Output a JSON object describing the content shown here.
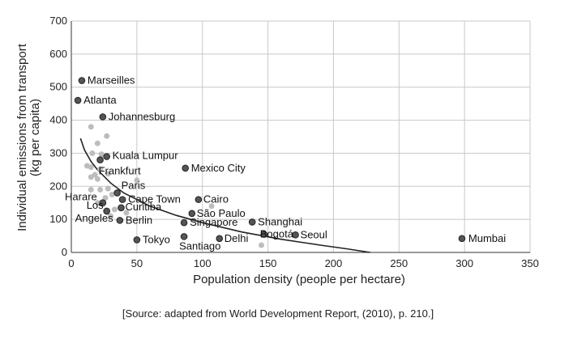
{
  "chart_data": {
    "type": "scatter",
    "xlabel": "Population density (people per hectare)",
    "ylabel_line1": "Individual emissions from transport",
    "ylabel_line2": "(kg per capita)",
    "xlim": [
      0,
      350
    ],
    "ylim": [
      0,
      700
    ],
    "x_ticks": [
      0,
      50,
      100,
      150,
      200,
      250,
      300,
      350
    ],
    "y_ticks": [
      0,
      100,
      200,
      300,
      400,
      500,
      600,
      700
    ],
    "grid": true,
    "source": "[Source: adapted from World Development Report, (2010), p. 210.]",
    "labeled_points": [
      {
        "name": "Marseilles",
        "x": 8,
        "y": 520
      },
      {
        "name": "Atlanta",
        "x": 5,
        "y": 460
      },
      {
        "name": "Johannesburg",
        "x": 24,
        "y": 410
      },
      {
        "name": "Kuala Lumpur",
        "x": 27,
        "y": 290
      },
      {
        "name": "Frankfurt",
        "x": 22,
        "y": 280
      },
      {
        "name": "Mexico City",
        "x": 87,
        "y": 255
      },
      {
        "name": "Paris",
        "x": 35,
        "y": 180
      },
      {
        "name": "Harare",
        "x": 24,
        "y": 150
      },
      {
        "name": "Cape Town",
        "x": 39,
        "y": 160
      },
      {
        "name": "Cairo",
        "x": 97,
        "y": 160
      },
      {
        "name": "Curitiba",
        "x": 38,
        "y": 135
      },
      {
        "name": "Los Angeles",
        "x": 27,
        "y": 125
      },
      {
        "name": "São Paulo",
        "x": 92,
        "y": 118
      },
      {
        "name": "Berlin",
        "x": 37,
        "y": 97
      },
      {
        "name": "Singapore",
        "x": 86,
        "y": 90
      },
      {
        "name": "Shanghai",
        "x": 138,
        "y": 92
      },
      {
        "name": "Bogotá",
        "x": 147,
        "y": 55
      },
      {
        "name": "Seoul",
        "x": 171,
        "y": 53
      },
      {
        "name": "Mumbai",
        "x": 298,
        "y": 42
      },
      {
        "name": "Tokyo",
        "x": 50,
        "y": 38
      },
      {
        "name": "Santiago",
        "x": 86,
        "y": 48
      },
      {
        "name": "Delhi",
        "x": 113,
        "y": 42
      }
    ],
    "unlabeled_points": [
      [
        15,
        380
      ],
      [
        20,
        330
      ],
      [
        27,
        352
      ],
      [
        16,
        300
      ],
      [
        23,
        297
      ],
      [
        12,
        262
      ],
      [
        15,
        258
      ],
      [
        22,
        252
      ],
      [
        28,
        238
      ],
      [
        18,
        235
      ],
      [
        15,
        228
      ],
      [
        20,
        222
      ],
      [
        50,
        218
      ],
      [
        15,
        190
      ],
      [
        22,
        190
      ],
      [
        28,
        193
      ],
      [
        31,
        175
      ],
      [
        20,
        150
      ],
      [
        26,
        165
      ],
      [
        33,
        130
      ],
      [
        30,
        110
      ],
      [
        42,
        120
      ],
      [
        107,
        140
      ],
      [
        145,
        22
      ]
    ],
    "trend_curve": [
      [
        7,
        345
      ],
      [
        10,
        310
      ],
      [
        15,
        275
      ],
      [
        20,
        250
      ],
      [
        30,
        210
      ],
      [
        40,
        180
      ],
      [
        60,
        140
      ],
      [
        80,
        112
      ],
      [
        100,
        90
      ],
      [
        130,
        62
      ],
      [
        160,
        40
      ],
      [
        190,
        22
      ],
      [
        210,
        11
      ],
      [
        228,
        0
      ]
    ]
  }
}
